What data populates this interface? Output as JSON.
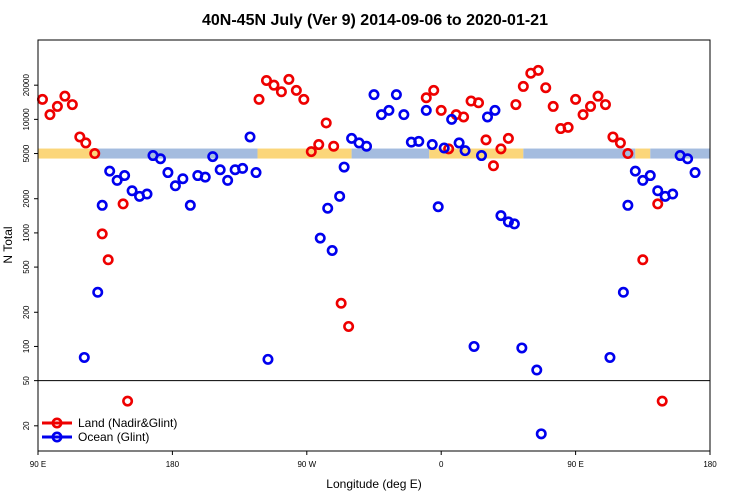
{
  "chart_data": {
    "type": "scatter",
    "title": "40N-45N July (Ver 9)   2014-09-06 to 2020-01-21",
    "xlabel": "Longitude (deg E)",
    "ylabel": "N Total",
    "x_tick_labels": [
      "90 E",
      "180",
      "90 W",
      "0",
      "90 E",
      "180"
    ],
    "y_tick_labels": [
      "20",
      "50",
      "100",
      "200",
      "500",
      "1000",
      "2000",
      "5000",
      "10000",
      "20000"
    ],
    "y_scale": "log",
    "ylim": [
      12,
      50000
    ],
    "xlim": [
      90,
      540
    ],
    "reference_line": 50,
    "band": {
      "value": 5000,
      "segments": [
        {
          "type": "land",
          "from": 90,
          "to": 130
        },
        {
          "type": "ocean",
          "from": 130,
          "to": 237
        },
        {
          "type": "land",
          "from": 237,
          "to": 300
        },
        {
          "type": "ocean",
          "from": 300,
          "to": 352
        },
        {
          "type": "land",
          "from": 352,
          "to": 415
        },
        {
          "type": "ocean",
          "from": 415,
          "to": 490
        },
        {
          "type": "land",
          "from": 490,
          "to": 500
        },
        {
          "type": "ocean",
          "from": 500,
          "to": 540
        }
      ]
    },
    "colors": {
      "land": "#ee0000",
      "ocean": "#0000ee",
      "land_band": "#fbd67a",
      "ocean_band": "#a4bcdf"
    },
    "series": [
      {
        "name": "Land (Nadir&Glint)",
        "color": "#ee0000",
        "points": [
          [
            93,
            15000
          ],
          [
            98,
            11000
          ],
          [
            103,
            13000
          ],
          [
            108,
            16000
          ],
          [
            113,
            13500
          ],
          [
            118,
            7000
          ],
          [
            122,
            6200
          ],
          [
            128,
            5000
          ],
          [
            133,
            980
          ],
          [
            137,
            580
          ],
          [
            147,
            1800
          ],
          [
            150,
            33
          ],
          [
            238,
            15000
          ],
          [
            243,
            22000
          ],
          [
            248,
            20000
          ],
          [
            253,
            17500
          ],
          [
            258,
            22500
          ],
          [
            263,
            18000
          ],
          [
            268,
            15000
          ],
          [
            273,
            5200
          ],
          [
            278,
            6000
          ],
          [
            283,
            9300
          ],
          [
            288,
            5800
          ],
          [
            293,
            240
          ],
          [
            298,
            150
          ],
          [
            350,
            15500
          ],
          [
            355,
            18000
          ],
          [
            360,
            12000
          ],
          [
            365,
            5500
          ],
          [
            370,
            11000
          ],
          [
            375,
            10500
          ],
          [
            380,
            14500
          ],
          [
            385,
            14000
          ],
          [
            390,
            6600
          ],
          [
            395,
            3900
          ],
          [
            400,
            5500
          ],
          [
            405,
            6800
          ],
          [
            410,
            13500
          ],
          [
            415,
            19500
          ],
          [
            420,
            25500
          ],
          [
            425,
            27000
          ],
          [
            430,
            19000
          ],
          [
            435,
            13000
          ],
          [
            440,
            8300
          ],
          [
            445,
            8500
          ],
          [
            450,
            15000
          ],
          [
            455,
            11000
          ],
          [
            460,
            13000
          ],
          [
            465,
            16000
          ],
          [
            470,
            13500
          ],
          [
            475,
            7000
          ],
          [
            480,
            6200
          ],
          [
            485,
            5000
          ],
          [
            495,
            580
          ],
          [
            505,
            1800
          ],
          [
            508,
            33
          ]
        ]
      },
      {
        "name": "Ocean (Glint)",
        "color": "#0000ee",
        "points": [
          [
            121,
            80
          ],
          [
            130,
            300
          ],
          [
            133,
            1750
          ],
          [
            138,
            3500
          ],
          [
            143,
            2900
          ],
          [
            148,
            3200
          ],
          [
            153,
            2350
          ],
          [
            158,
            2100
          ],
          [
            163,
            2200
          ],
          [
            167,
            4800
          ],
          [
            172,
            4500
          ],
          [
            177,
            3400
          ],
          [
            182,
            2600
          ],
          [
            187,
            3000
          ],
          [
            192,
            1750
          ],
          [
            197,
            3200
          ],
          [
            202,
            3100
          ],
          [
            207,
            4700
          ],
          [
            212,
            3600
          ],
          [
            217,
            2900
          ],
          [
            222,
            3600
          ],
          [
            227,
            3700
          ],
          [
            232,
            7000
          ],
          [
            236,
            3400
          ],
          [
            244,
            77
          ],
          [
            279,
            900
          ],
          [
            284,
            1650
          ],
          [
            287,
            700
          ],
          [
            292,
            2100
          ],
          [
            295,
            3800
          ],
          [
            300,
            6800
          ],
          [
            305,
            6200
          ],
          [
            310,
            5800
          ],
          [
            315,
            16500
          ],
          [
            320,
            11000
          ],
          [
            325,
            12000
          ],
          [
            330,
            16500
          ],
          [
            335,
            11000
          ],
          [
            340,
            6300
          ],
          [
            345,
            6400
          ],
          [
            350,
            12000
          ],
          [
            354,
            6000
          ],
          [
            358,
            1700
          ],
          [
            362,
            5600
          ],
          [
            367,
            10000
          ],
          [
            372,
            6200
          ],
          [
            376,
            5300
          ],
          [
            382,
            100
          ],
          [
            387,
            4800
          ],
          [
            391,
            10500
          ],
          [
            396,
            12000
          ],
          [
            400,
            1420
          ],
          [
            405,
            1250
          ],
          [
            409,
            1200
          ],
          [
            414,
            97
          ],
          [
            424,
            62
          ],
          [
            427,
            17
          ],
          [
            473,
            80
          ],
          [
            482,
            300
          ],
          [
            485,
            1750
          ],
          [
            490,
            3500
          ],
          [
            495,
            2900
          ],
          [
            500,
            3200
          ],
          [
            505,
            2350
          ],
          [
            510,
            2100
          ],
          [
            515,
            2200
          ],
          [
            520,
            4800
          ],
          [
            525,
            4500
          ],
          [
            530,
            3400
          ]
        ]
      }
    ]
  }
}
